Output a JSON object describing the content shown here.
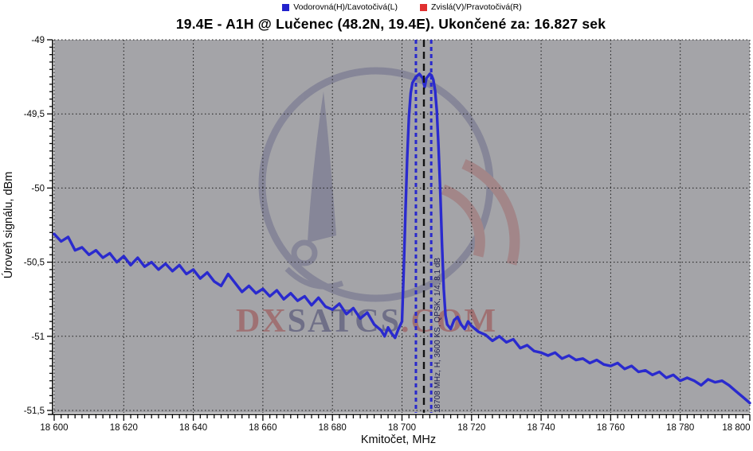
{
  "title": "19.4E - A1H @ Lučenec (48.2N, 19.4E). Ukončené za: 16.827 sek",
  "legend": {
    "items": [
      {
        "label": "Vodorovná(H)/Ľavotočivá(L)",
        "color": "#2222cc"
      },
      {
        "label": "Zvislá(V)/Pravotočivá(R)",
        "color": "#e03030"
      }
    ]
  },
  "watermark": {
    "part1": "DX",
    "part2": "SATCS",
    "part3": ".COM",
    "red": "#9c4040",
    "navy": "#3b3b68"
  },
  "chart_data": {
    "type": "line",
    "title": "19.4E - A1H @ Lučenec (48.2N, 19.4E). Ukončené za: 16.827 sek",
    "xlabel": "Kmitočet, MHz",
    "ylabel": "Úroveň signálu, dBm",
    "xlim": [
      18600,
      18800
    ],
    "ylim": [
      -51.5,
      -49
    ],
    "background": "#a4a4a8",
    "grid": "dotted, every 20 MHz and 0.5 dB",
    "legend_position": "top-center",
    "xticks": [
      {
        "v": 18600,
        "label": "18 600"
      },
      {
        "v": 18620,
        "label": "18 620"
      },
      {
        "v": 18640,
        "label": "18 640"
      },
      {
        "v": 18660,
        "label": "18 660"
      },
      {
        "v": 18680,
        "label": "18 680"
      },
      {
        "v": 18700,
        "label": "18 700"
      },
      {
        "v": 18720,
        "label": "18 720"
      },
      {
        "v": 18740,
        "label": "18 740"
      },
      {
        "v": 18760,
        "label": "18 760"
      },
      {
        "v": 18780,
        "label": "18 780"
      },
      {
        "v": 18800,
        "label": "18 800"
      }
    ],
    "yticks": [
      {
        "v": -49,
        "label": "-49"
      },
      {
        "v": -49.5,
        "label": "-49,5"
      },
      {
        "v": -50,
        "label": "-50"
      },
      {
        "v": -50.5,
        "label": "-50,5"
      },
      {
        "v": -51,
        "label": "-51"
      },
      {
        "v": -51.5,
        "label": "-51,5"
      }
    ],
    "xtick_minor_step": 2,
    "ytick_minor_step": 0.05,
    "series": [
      {
        "name": "Vodorovná(H)/Ľavotočivá(L)",
        "color": "#2a2ace",
        "points": [
          [
            18600,
            -50.31
          ],
          [
            18602,
            -50.36
          ],
          [
            18604,
            -50.33
          ],
          [
            18606,
            -50.42
          ],
          [
            18608,
            -50.4
          ],
          [
            18610,
            -50.45
          ],
          [
            18612,
            -50.42
          ],
          [
            18614,
            -50.47
          ],
          [
            18616,
            -50.44
          ],
          [
            18618,
            -50.5
          ],
          [
            18620,
            -50.46
          ],
          [
            18622,
            -50.52
          ],
          [
            18624,
            -50.47
          ],
          [
            18626,
            -50.53
          ],
          [
            18628,
            -50.5
          ],
          [
            18630,
            -50.55
          ],
          [
            18632,
            -50.51
          ],
          [
            18634,
            -50.56
          ],
          [
            18636,
            -50.52
          ],
          [
            18638,
            -50.58
          ],
          [
            18640,
            -50.55
          ],
          [
            18642,
            -50.61
          ],
          [
            18644,
            -50.57
          ],
          [
            18646,
            -50.63
          ],
          [
            18648,
            -50.66
          ],
          [
            18650,
            -50.58
          ],
          [
            18652,
            -50.64
          ],
          [
            18654,
            -50.7
          ],
          [
            18656,
            -50.66
          ],
          [
            18658,
            -50.71
          ],
          [
            18660,
            -50.68
          ],
          [
            18662,
            -50.73
          ],
          [
            18664,
            -50.69
          ],
          [
            18666,
            -50.75
          ],
          [
            18668,
            -50.71
          ],
          [
            18670,
            -50.76
          ],
          [
            18672,
            -50.73
          ],
          [
            18674,
            -50.79
          ],
          [
            18676,
            -50.74
          ],
          [
            18678,
            -50.8
          ],
          [
            18680,
            -50.82
          ],
          [
            18682,
            -50.78
          ],
          [
            18684,
            -50.85
          ],
          [
            18686,
            -50.81
          ],
          [
            18688,
            -50.88
          ],
          [
            18690,
            -50.84
          ],
          [
            18692,
            -50.92
          ],
          [
            18694,
            -50.96
          ],
          [
            18695,
            -51.0
          ],
          [
            18696,
            -50.94
          ],
          [
            18697,
            -50.98
          ],
          [
            18698,
            -51.01
          ],
          [
            18699,
            -50.95
          ],
          [
            18700,
            -50.9
          ],
          [
            18700.5,
            -50.55
          ],
          [
            18701,
            -50.15
          ],
          [
            18701.5,
            -49.8
          ],
          [
            18702,
            -49.52
          ],
          [
            18702.5,
            -49.36
          ],
          [
            18703,
            -49.29
          ],
          [
            18704,
            -49.25
          ],
          [
            18705,
            -49.23
          ],
          [
            18706,
            -49.26
          ],
          [
            18706.5,
            -49.32
          ],
          [
            18707,
            -49.26
          ],
          [
            18708,
            -49.23
          ],
          [
            18708.5,
            -49.24
          ],
          [
            18709,
            -49.27
          ],
          [
            18709.5,
            -49.34
          ],
          [
            18710,
            -49.48
          ],
          [
            18710.5,
            -49.72
          ],
          [
            18711,
            -50.02
          ],
          [
            18711.5,
            -50.38
          ],
          [
            18712,
            -50.68
          ],
          [
            18712.5,
            -50.86
          ],
          [
            18713,
            -50.92
          ],
          [
            18714,
            -50.95
          ],
          [
            18715,
            -50.89
          ],
          [
            18716,
            -50.87
          ],
          [
            18717,
            -50.92
          ],
          [
            18718,
            -50.95
          ],
          [
            18719,
            -50.9
          ],
          [
            18720,
            -50.93
          ],
          [
            18722,
            -50.97
          ],
          [
            18724,
            -50.99
          ],
          [
            18726,
            -51.03
          ],
          [
            18728,
            -51.0
          ],
          [
            18730,
            -51.04
          ],
          [
            18732,
            -51.02
          ],
          [
            18734,
            -51.08
          ],
          [
            18736,
            -51.06
          ],
          [
            18738,
            -51.1
          ],
          [
            18740,
            -51.11
          ],
          [
            18742,
            -51.13
          ],
          [
            18744,
            -51.11
          ],
          [
            18746,
            -51.15
          ],
          [
            18748,
            -51.13
          ],
          [
            18750,
            -51.16
          ],
          [
            18752,
            -51.15
          ],
          [
            18754,
            -51.18
          ],
          [
            18756,
            -51.16
          ],
          [
            18758,
            -51.19
          ],
          [
            18760,
            -51.2
          ],
          [
            18762,
            -51.18
          ],
          [
            18764,
            -51.22
          ],
          [
            18766,
            -51.2
          ],
          [
            18768,
            -51.24
          ],
          [
            18770,
            -51.23
          ],
          [
            18772,
            -51.26
          ],
          [
            18774,
            -51.24
          ],
          [
            18776,
            -51.28
          ],
          [
            18778,
            -51.26
          ],
          [
            18780,
            -51.3
          ],
          [
            18782,
            -51.28
          ],
          [
            18784,
            -51.3
          ],
          [
            18786,
            -51.33
          ],
          [
            18788,
            -51.29
          ],
          [
            18790,
            -51.31
          ],
          [
            18792,
            -51.3
          ],
          [
            18794,
            -51.33
          ],
          [
            18796,
            -51.37
          ],
          [
            18798,
            -51.41
          ],
          [
            18800,
            -51.45
          ]
        ]
      }
    ],
    "markers": {
      "band_edges_mhz": [
        18704.0,
        18708.4
      ],
      "band_edge_color": "#2929cc",
      "center_mhz": 18706.3,
      "center_color": "#111111"
    },
    "annotation": "18708 MHz, H, 3600 KS, QPSK, 1/4, 8.1 dB"
  }
}
